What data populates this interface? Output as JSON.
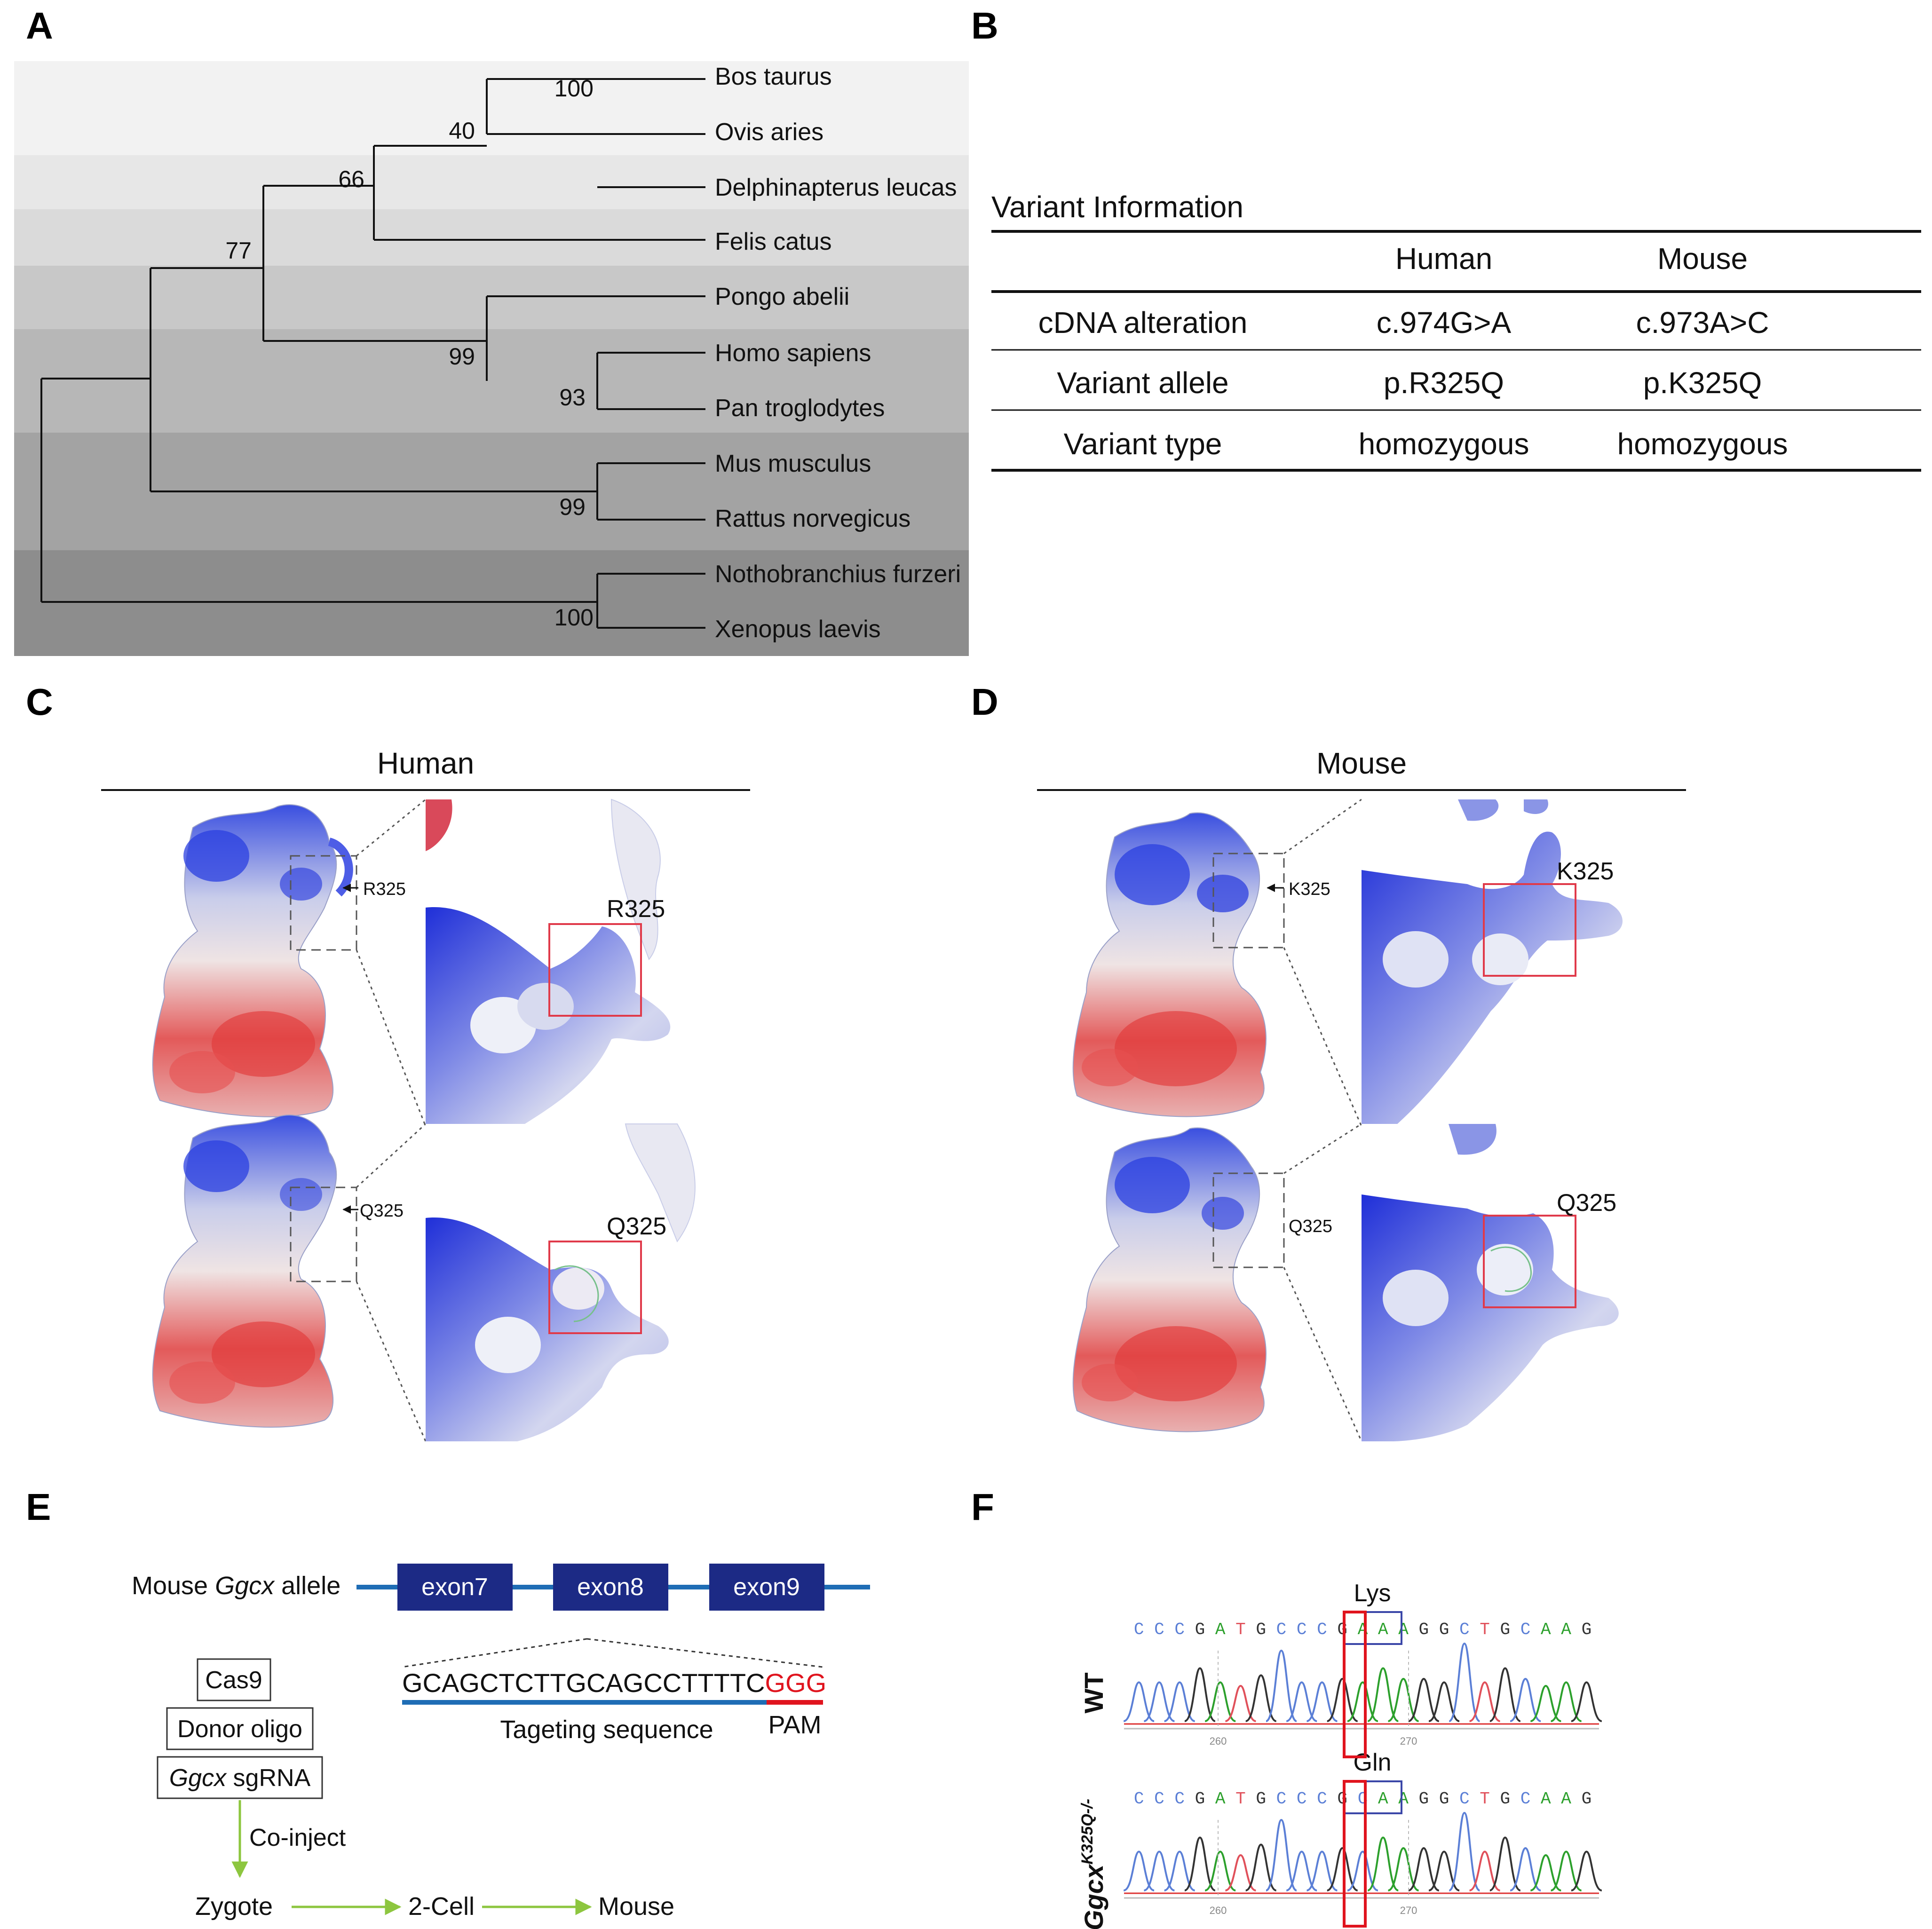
{
  "panels": {
    "a": "A",
    "b": "B",
    "c": "C",
    "d": "D",
    "e": "E",
    "f": "F"
  },
  "tree": {
    "taxa": [
      "Bos taurus",
      "Ovis aries",
      "Delphinapterus leucas",
      "Felis catus",
      "Pongo abelii",
      "Homo sapiens",
      "Pan troglodytes",
      "Mus musculus",
      "Rattus norvegicus",
      "Nothobranchius furzeri",
      "Xenopus laevis"
    ],
    "bootstrap": {
      "bos_ovis": "100",
      "bos_ovis_delph": "40",
      "cetartio_felis": "66",
      "laurasia_primates": "77",
      "primates": "99",
      "homo_pan": "93",
      "rodents": "99",
      "outgroup": "100"
    },
    "band_colors": [
      "#f2f2f2",
      "#e7e7e7",
      "#dadada",
      "#c8c8c8",
      "#b7b7b7",
      "#a3a3a3",
      "#8d8d8d"
    ]
  },
  "variant_table": {
    "title": "Variant Information",
    "columns": [
      "Human",
      "Mouse"
    ],
    "rows": [
      {
        "label": "cDNA alteration",
        "human": "c.974G>A",
        "mouse": "c.973A>C"
      },
      {
        "label": "Variant allele",
        "human": "p.R325Q",
        "mouse": "p.K325Q"
      },
      {
        "label": "Variant type",
        "human": "homozygous",
        "mouse": "homozygous"
      }
    ]
  },
  "structure_human": {
    "title": "Human",
    "top_arrow_label": "R325",
    "top_zoom_label": "R325",
    "bottom_arrow_label": "Q325",
    "bottom_zoom_label": "Q325"
  },
  "structure_mouse": {
    "title": "Mouse",
    "top_arrow_label": "K325",
    "top_zoom_label": "K325",
    "bottom_arrow_label": "Q325",
    "bottom_zoom_label": "Q325"
  },
  "crispr": {
    "allele_label_prefix": "Mouse ",
    "allele_label_gene": "Ggcx",
    "allele_label_suffix": " allele",
    "exons": [
      "exon7",
      "exon8",
      "exon9"
    ],
    "target_sequence": "GCAGCTCTTGCAGCCTTTTC",
    "pam_sequence": "GGG",
    "target_label": "Tageting sequence",
    "pam_label": "PAM",
    "components": [
      "Cas9",
      "Donor oligo"
    ],
    "sgrna_gene": "Ggcx",
    "sgrna_suffix": " sgRNA",
    "coinject_label": "Co-inject",
    "steps": [
      "Zygote",
      "2-Cell",
      "Mouse"
    ],
    "colors": {
      "exon": "#1c2a85",
      "line": "#1f6db5",
      "pam": "#e0141e",
      "arrow": "#8dc63f"
    }
  },
  "chromatogram": {
    "sequence_wt": "CCCGATGCCCGAAAGGCTGCAAG",
    "sequence_mut": "CCCGATGCCCGCAAGGCTGCAAG",
    "codon_wt": "Lys",
    "codon_mut": "Gln",
    "row_label_wt": "WT",
    "row_label_mut_gene": "Ggcx",
    "row_label_mut_sup": "K325Q-/-",
    "tick_labels": [
      "260",
      "270"
    ],
    "base_colors": {
      "A": "#2ca02c",
      "C": "#5b7fd6",
      "G": "#333333",
      "T": "#e0505a"
    }
  }
}
